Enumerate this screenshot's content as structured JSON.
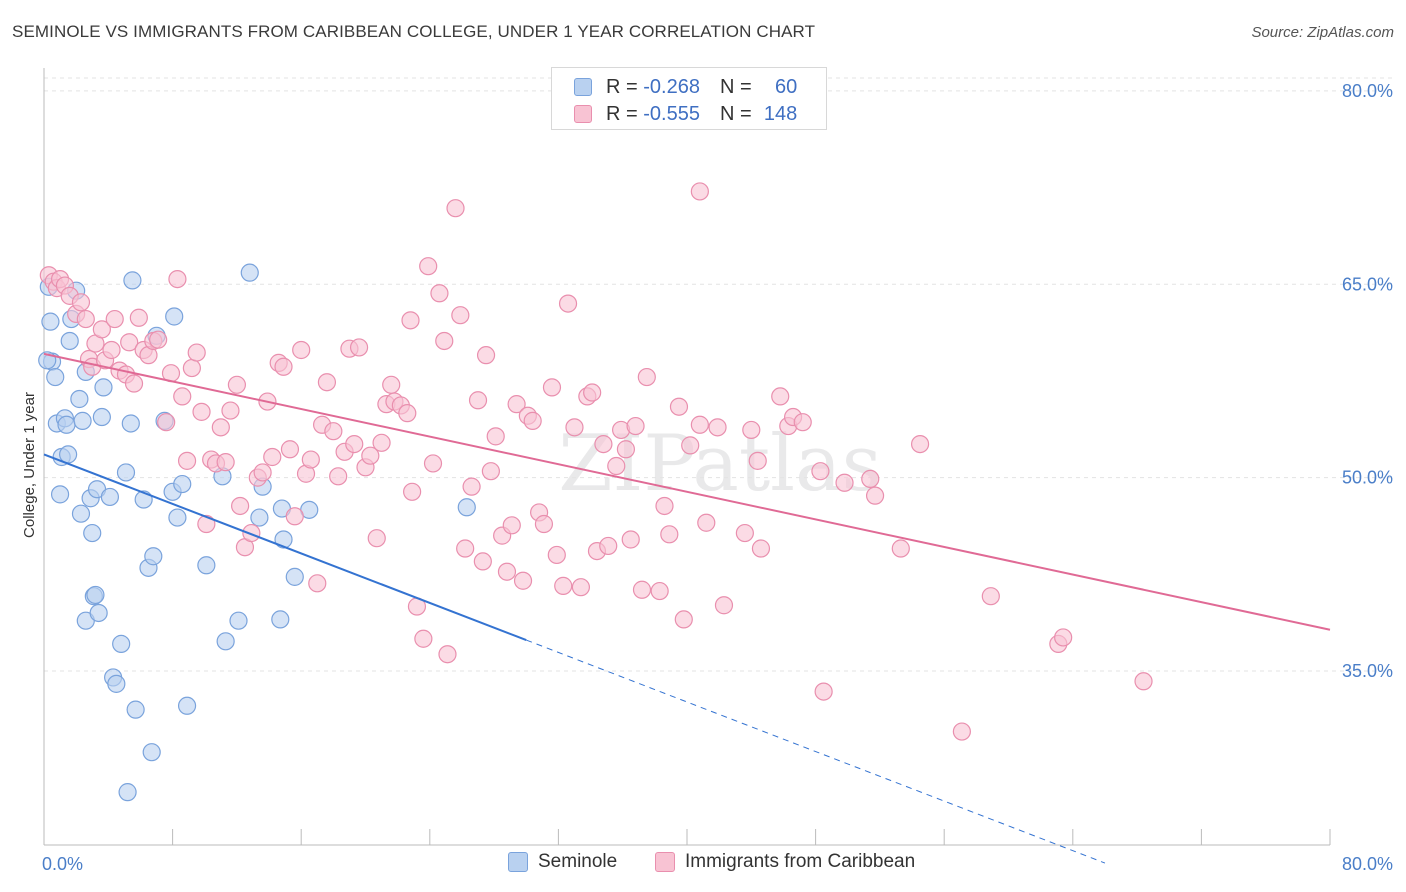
{
  "title": "SEMINOLE VS IMMIGRANTS FROM CARIBBEAN COLLEGE, UNDER 1 YEAR CORRELATION CHART",
  "source": "Source: ZipAtlas.com",
  "watermark": "ZIPatlas",
  "legend": {
    "r_label": "R =",
    "n_label": "N =",
    "rows": [
      {
        "r": "-0.268",
        "n": "60",
        "fill": "#b9d1f0",
        "stroke": "#7aa3dc"
      },
      {
        "r": "-0.555",
        "n": "148",
        "fill": "#f8c3d3",
        "stroke": "#e98fae"
      }
    ]
  },
  "bottom_legend": [
    {
      "label": "Seminole",
      "fill": "#b9d1f0",
      "stroke": "#7aa3dc"
    },
    {
      "label": "Immigrants from Caribbean",
      "fill": "#f8c3d3",
      "stroke": "#e98fae"
    }
  ],
  "chart_data": {
    "type": "scatter",
    "title": "SEMINOLE VS IMMIGRANTS FROM CARIBBEAN COLLEGE, UNDER 1 YEAR CORRELATION CHART",
    "xlabel": "",
    "ylabel": "College, Under 1 year",
    "xlim": [
      0,
      80
    ],
    "ylim": [
      21.5,
      81
    ],
    "x_tick_labels": [
      "0.0%",
      "80.0%"
    ],
    "y_ticks": [
      35,
      50,
      65,
      80
    ],
    "y_tick_labels": [
      "35.0%",
      "50.0%",
      "65.0%",
      "80.0%"
    ],
    "grid": true,
    "legend_position": "top-center",
    "series": [
      {
        "name": "Seminole",
        "color": "#7aa3dc",
        "fill": "#b9d1f0",
        "trend": {
          "x": [
            0,
            30
          ],
          "y": [
            51.8,
            37.4
          ],
          "dashed_to": [
            66,
            20.1
          ],
          "color": "#3473d1"
        },
        "points": [
          [
            0.3,
            64.8
          ],
          [
            0.4,
            62.1
          ],
          [
            0.5,
            59.0
          ],
          [
            0.7,
            57.8
          ],
          [
            0.8,
            54.2
          ],
          [
            1.0,
            48.7
          ],
          [
            1.1,
            51.6
          ],
          [
            1.3,
            54.6
          ],
          [
            1.4,
            54.1
          ],
          [
            1.5,
            51.8
          ],
          [
            1.6,
            60.6
          ],
          [
            1.7,
            62.3
          ],
          [
            2.0,
            64.5
          ],
          [
            2.2,
            56.1
          ],
          [
            2.3,
            47.2
          ],
          [
            2.4,
            54.4
          ],
          [
            2.6,
            58.2
          ],
          [
            2.6,
            38.9
          ],
          [
            2.9,
            48.4
          ],
          [
            3.0,
            45.7
          ],
          [
            3.1,
            40.8
          ],
          [
            3.2,
            40.9
          ],
          [
            3.3,
            49.1
          ],
          [
            3.4,
            39.5
          ],
          [
            3.6,
            54.7
          ],
          [
            3.7,
            57.0
          ],
          [
            4.1,
            48.5
          ],
          [
            4.3,
            34.5
          ],
          [
            4.5,
            34.0
          ],
          [
            4.8,
            37.1
          ],
          [
            5.1,
            50.4
          ],
          [
            5.2,
            25.6
          ],
          [
            5.4,
            54.2
          ],
          [
            5.5,
            65.3
          ],
          [
            5.7,
            32.0
          ],
          [
            6.2,
            48.3
          ],
          [
            6.5,
            43.0
          ],
          [
            6.7,
            28.7
          ],
          [
            6.8,
            43.9
          ],
          [
            7.5,
            54.4
          ],
          [
            8.0,
            48.9
          ],
          [
            8.1,
            62.5
          ],
          [
            8.3,
            46.9
          ],
          [
            8.6,
            49.5
          ],
          [
            8.9,
            32.3
          ],
          [
            10.1,
            43.2
          ],
          [
            11.1,
            50.1
          ],
          [
            11.3,
            37.3
          ],
          [
            12.1,
            38.9
          ],
          [
            12.8,
            65.9
          ],
          [
            13.4,
            46.9
          ],
          [
            13.6,
            49.3
          ],
          [
            14.7,
            39.0
          ],
          [
            14.8,
            47.6
          ],
          [
            14.9,
            45.2
          ],
          [
            15.6,
            42.3
          ],
          [
            16.5,
            47.5
          ],
          [
            26.3,
            47.7
          ],
          [
            0.2,
            59.1
          ],
          [
            7.0,
            61.0
          ]
        ]
      },
      {
        "name": "Immigrants from Caribbean",
        "color": "#e98fae",
        "fill": "#f8c3d3",
        "trend": {
          "x": [
            0,
            80
          ],
          "y": [
            59.6,
            38.2
          ],
          "color": "#e06a95"
        },
        "points": [
          [
            0.3,
            65.7
          ],
          [
            0.6,
            65.2
          ],
          [
            0.8,
            64.7
          ],
          [
            1.0,
            65.4
          ],
          [
            1.3,
            64.9
          ],
          [
            1.6,
            64.1
          ],
          [
            2.0,
            62.7
          ],
          [
            2.3,
            63.6
          ],
          [
            2.6,
            62.3
          ],
          [
            2.8,
            59.2
          ],
          [
            3.0,
            58.6
          ],
          [
            3.2,
            60.4
          ],
          [
            3.6,
            61.5
          ],
          [
            3.8,
            59.1
          ],
          [
            4.2,
            59.9
          ],
          [
            4.4,
            62.3
          ],
          [
            4.7,
            58.3
          ],
          [
            5.1,
            58.0
          ],
          [
            5.3,
            60.5
          ],
          [
            5.6,
            57.3
          ],
          [
            5.9,
            62.4
          ],
          [
            6.2,
            59.9
          ],
          [
            6.5,
            59.5
          ],
          [
            6.8,
            60.6
          ],
          [
            7.1,
            60.7
          ],
          [
            7.6,
            54.3
          ],
          [
            7.9,
            58.1
          ],
          [
            8.3,
            65.4
          ],
          [
            8.6,
            56.3
          ],
          [
            8.9,
            51.3
          ],
          [
            9.2,
            58.5
          ],
          [
            9.5,
            59.7
          ],
          [
            9.8,
            55.1
          ],
          [
            10.1,
            46.4
          ],
          [
            10.4,
            51.4
          ],
          [
            10.7,
            51.1
          ],
          [
            11.0,
            53.9
          ],
          [
            11.3,
            51.2
          ],
          [
            11.6,
            55.2
          ],
          [
            12.0,
            57.2
          ],
          [
            12.2,
            47.8
          ],
          [
            12.5,
            44.6
          ],
          [
            12.9,
            45.7
          ],
          [
            13.3,
            50.0
          ],
          [
            13.6,
            50.4
          ],
          [
            13.9,
            55.9
          ],
          [
            14.2,
            51.6
          ],
          [
            14.6,
            58.9
          ],
          [
            14.9,
            58.6
          ],
          [
            15.3,
            52.2
          ],
          [
            15.6,
            47.0
          ],
          [
            16.0,
            59.9
          ],
          [
            16.3,
            50.3
          ],
          [
            16.6,
            51.4
          ],
          [
            17.0,
            41.8
          ],
          [
            17.3,
            54.1
          ],
          [
            17.6,
            57.4
          ],
          [
            18.0,
            53.6
          ],
          [
            18.3,
            50.1
          ],
          [
            18.7,
            52.0
          ],
          [
            19.0,
            60.0
          ],
          [
            19.3,
            52.6
          ],
          [
            19.6,
            60.1
          ],
          [
            20.0,
            50.8
          ],
          [
            20.3,
            51.7
          ],
          [
            20.7,
            45.3
          ],
          [
            21.0,
            52.7
          ],
          [
            21.3,
            55.7
          ],
          [
            21.6,
            57.2
          ],
          [
            21.8,
            55.9
          ],
          [
            22.2,
            55.6
          ],
          [
            22.6,
            55.0
          ],
          [
            22.9,
            48.9
          ],
          [
            23.2,
            40.0
          ],
          [
            23.6,
            37.5
          ],
          [
            23.9,
            66.4
          ],
          [
            24.2,
            51.1
          ],
          [
            24.6,
            64.3
          ],
          [
            24.9,
            60.6
          ],
          [
            25.1,
            36.3
          ],
          [
            25.6,
            70.9
          ],
          [
            25.9,
            62.6
          ],
          [
            26.2,
            44.5
          ],
          [
            26.6,
            49.3
          ],
          [
            27.0,
            56.0
          ],
          [
            27.3,
            43.5
          ],
          [
            27.5,
            59.5
          ],
          [
            27.8,
            50.5
          ],
          [
            28.1,
            53.2
          ],
          [
            28.5,
            45.5
          ],
          [
            28.8,
            42.7
          ],
          [
            29.1,
            46.3
          ],
          [
            29.4,
            55.7
          ],
          [
            29.8,
            42.0
          ],
          [
            30.1,
            54.8
          ],
          [
            30.4,
            54.4
          ],
          [
            30.8,
            47.3
          ],
          [
            31.1,
            46.4
          ],
          [
            31.6,
            57.0
          ],
          [
            31.9,
            44.0
          ],
          [
            32.3,
            41.6
          ],
          [
            32.6,
            63.5
          ],
          [
            33.0,
            53.9
          ],
          [
            33.4,
            41.5
          ],
          [
            33.8,
            56.3
          ],
          [
            34.1,
            56.6
          ],
          [
            34.4,
            44.3
          ],
          [
            34.8,
            52.6
          ],
          [
            35.1,
            44.7
          ],
          [
            35.6,
            50.9
          ],
          [
            35.9,
            53.7
          ],
          [
            36.2,
            52.2
          ],
          [
            36.5,
            45.2
          ],
          [
            36.8,
            54.0
          ],
          [
            37.2,
            41.3
          ],
          [
            37.5,
            57.8
          ],
          [
            38.3,
            41.2
          ],
          [
            38.6,
            47.8
          ],
          [
            38.9,
            45.6
          ],
          [
            39.5,
            55.5
          ],
          [
            39.8,
            39.0
          ],
          [
            40.2,
            52.5
          ],
          [
            40.8,
            54.1
          ],
          [
            41.2,
            46.5
          ],
          [
            41.9,
            53.9
          ],
          [
            42.3,
            40.1
          ],
          [
            43.6,
            45.7
          ],
          [
            44.0,
            53.7
          ],
          [
            44.4,
            51.3
          ],
          [
            44.6,
            44.5
          ],
          [
            45.8,
            56.3
          ],
          [
            46.3,
            54.0
          ],
          [
            46.6,
            54.7
          ],
          [
            47.2,
            54.3
          ],
          [
            48.3,
            50.5
          ],
          [
            48.5,
            33.4
          ],
          [
            49.8,
            49.6
          ],
          [
            51.4,
            49.9
          ],
          [
            51.7,
            48.6
          ],
          [
            53.3,
            44.5
          ],
          [
            54.5,
            52.6
          ],
          [
            57.1,
            30.3
          ],
          [
            58.9,
            40.8
          ],
          [
            63.1,
            37.1
          ],
          [
            63.4,
            37.6
          ],
          [
            68.4,
            34.2
          ],
          [
            40.8,
            72.2
          ],
          [
            22.8,
            62.2
          ]
        ]
      }
    ]
  }
}
